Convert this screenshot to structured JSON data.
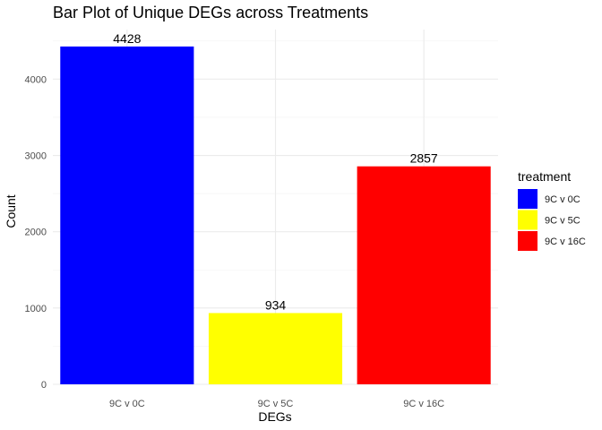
{
  "chart_data": {
    "type": "bar",
    "title": "Bar Plot of Unique DEGs across Treatments",
    "xlabel": "DEGs",
    "ylabel": "Count",
    "categories": [
      "9C v 0C",
      "9C v 5C",
      "9C v 16C"
    ],
    "values": [
      4428,
      934,
      2857
    ],
    "data_labels": [
      "4428",
      "934",
      "2857"
    ],
    "colors": [
      "#0000ff",
      "#ffff00",
      "#ff0000"
    ],
    "ylim": [
      0,
      4650
    ],
    "yticks": [
      0,
      1000,
      2000,
      3000,
      4000
    ],
    "grid": true,
    "legend": {
      "title": "treatment",
      "position": "right",
      "entries": [
        "9C v 0C",
        "9C v 5C",
        "9C v 16C"
      ]
    }
  }
}
